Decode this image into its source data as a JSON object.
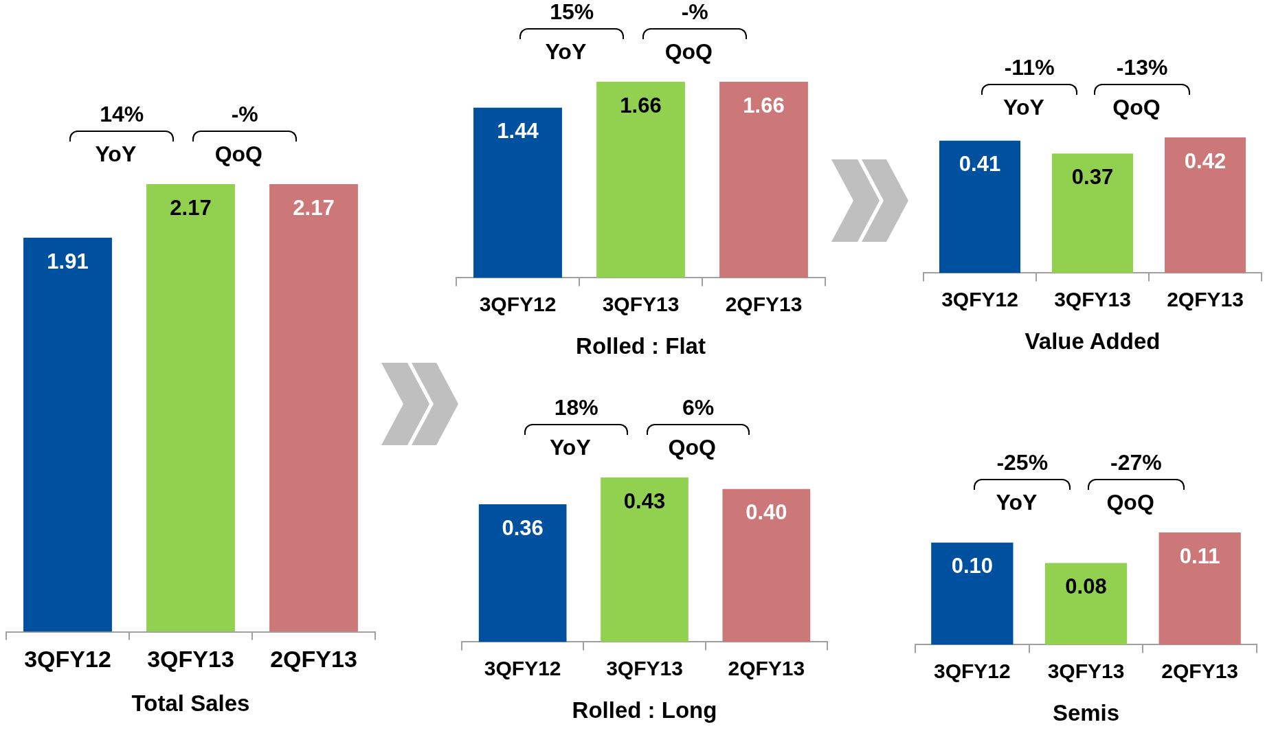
{
  "chart_data": [
    {
      "type": "bar",
      "title": "Total Sales",
      "categories": [
        "3QFY12",
        "3QFY13",
        "2QFY13"
      ],
      "values": [
        1.91,
        2.17,
        2.17
      ],
      "colors": [
        "#0050a0",
        "#92d050",
        "#cd7878"
      ],
      "value_labels": [
        "1.91",
        "2.17",
        "2.17"
      ],
      "ylim": [
        0,
        2.17
      ],
      "tick_labels": "x",
      "legend": false,
      "annotations": [
        "14%",
        "YoY",
        "-%",
        "QoQ"
      ]
    },
    {
      "type": "bar",
      "title": "Rolled : Flat",
      "categories": [
        "3QFY12",
        "3QFY13",
        "2QFY13"
      ],
      "values": [
        1.44,
        1.66,
        1.66
      ],
      "colors": [
        "#0050a0",
        "#92d050",
        "#cd7878"
      ],
      "value_labels": [
        "1.44",
        "1.66",
        "1.66"
      ],
      "ylim": [
        0,
        1.66
      ],
      "tick_labels": "x",
      "legend": false,
      "annotations": [
        "15%",
        "YoY",
        "-%",
        "QoQ"
      ]
    },
    {
      "type": "bar",
      "title": "Rolled : Long",
      "categories": [
        "3QFY12",
        "3QFY13",
        "2QFY13"
      ],
      "values": [
        0.36,
        0.43,
        0.4
      ],
      "colors": [
        "#0050a0",
        "#92d050",
        "#cd7878"
      ],
      "value_labels": [
        "0.36",
        "0.43",
        "0.40"
      ],
      "ylim": [
        0,
        0.43
      ],
      "tick_labels": "x",
      "legend": false,
      "annotations": [
        "18%",
        "YoY",
        "6%",
        "QoQ"
      ]
    },
    {
      "type": "bar",
      "title": "Value Added",
      "categories": [
        "3QFY12",
        "3QFY13",
        "2QFY13"
      ],
      "values": [
        0.41,
        0.37,
        0.42
      ],
      "colors": [
        "#0050a0",
        "#92d050",
        "#cd7878"
      ],
      "value_labels": [
        "0.41",
        "0.37",
        "0.42"
      ],
      "ylim": [
        0,
        0.42
      ],
      "tick_labels": "x",
      "legend": false,
      "annotations": [
        "-11%",
        "YoY",
        "-13%",
        "QoQ"
      ]
    },
    {
      "type": "bar",
      "title": "Semis",
      "categories": [
        "3QFY12",
        "3QFY13",
        "2QFY13"
      ],
      "values": [
        0.1,
        0.08,
        0.11
      ],
      "colors": [
        "#0050a0",
        "#92d050",
        "#cd7878"
      ],
      "value_labels": [
        "0.10",
        "0.08",
        "0.11"
      ],
      "ylim": [
        0,
        0.11
      ],
      "tick_labels": "x",
      "legend": false,
      "annotations": [
        "-25%",
        "YoY",
        "-27%",
        "QoQ"
      ]
    }
  ]
}
